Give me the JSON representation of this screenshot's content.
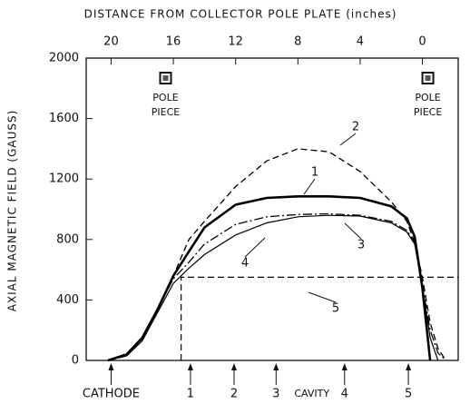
{
  "chart_data": {
    "type": "line",
    "x_label": "DISTANCE FROM COLLECTOR POLE PLATE (inches)",
    "y_label": "AXIAL MAGNETIC FIELD (GAUSS)",
    "xlim": [
      21.6,
      -2.3
    ],
    "xticks": [
      20,
      16,
      12,
      8,
      4,
      0
    ],
    "ylim": [
      0,
      2000
    ],
    "yticks": [
      0,
      400,
      800,
      1200,
      1600,
      2000
    ],
    "x": [
      20.2,
      19,
      18,
      17,
      16,
      15,
      14,
      12,
      10,
      8,
      6,
      4,
      2,
      1,
      0.5,
      0,
      -0.5,
      -1,
      -1.5
    ],
    "series": [
      {
        "name": "1",
        "color": "#000000",
        "dash": "solid",
        "width": 2.6,
        "values": [
          0,
          40,
          150,
          340,
          560,
          720,
          880,
          1030,
          1075,
          1085,
          1085,
          1075,
          1020,
          940,
          820,
          480,
          0,
          null,
          null
        ]
      },
      {
        "name": "2",
        "color": "#000000",
        "dash": "dashed",
        "width": 1.3,
        "values": [
          0,
          30,
          140,
          350,
          560,
          800,
          920,
          1150,
          1320,
          1400,
          1380,
          1250,
          1050,
          920,
          780,
          550,
          250,
          80,
          0
        ]
      },
      {
        "name": "3",
        "color": "#000000",
        "dash": "dashdot",
        "width": 1.3,
        "values": [
          0,
          35,
          145,
          345,
          540,
          650,
          770,
          900,
          950,
          965,
          970,
          960,
          920,
          860,
          780,
          500,
          200,
          50,
          0
        ]
      },
      {
        "name": "4",
        "color": "#000000",
        "dash": "solid",
        "width": 1.2,
        "values": [
          0,
          30,
          130,
          320,
          510,
          610,
          700,
          830,
          910,
          950,
          960,
          955,
          910,
          850,
          770,
          490,
          150,
          0,
          null
        ]
      },
      {
        "name": "5",
        "color": "#000000",
        "dash": "dashed",
        "width": 1.2,
        "x": [
          15.5,
          15.5,
          -2.3
        ],
        "values": [
          0,
          550,
          550
        ]
      }
    ],
    "annotations": [
      {
        "text": "POLE PIECE",
        "x": 16.5
      },
      {
        "text": "POLE PIECE",
        "x": -0.35
      }
    ],
    "markers": [
      {
        "label": "CATHODE",
        "x": 20.0
      },
      {
        "label": "1",
        "x": 14.9
      },
      {
        "label": "2",
        "x": 12.1
      },
      {
        "label": "3",
        "x": 9.4
      },
      {
        "label": "4",
        "x": 5.0
      },
      {
        "label": "5",
        "x": 0.9
      }
    ],
    "cavity_label": {
      "text": "CAVITY",
      "x": 7.1
    }
  }
}
